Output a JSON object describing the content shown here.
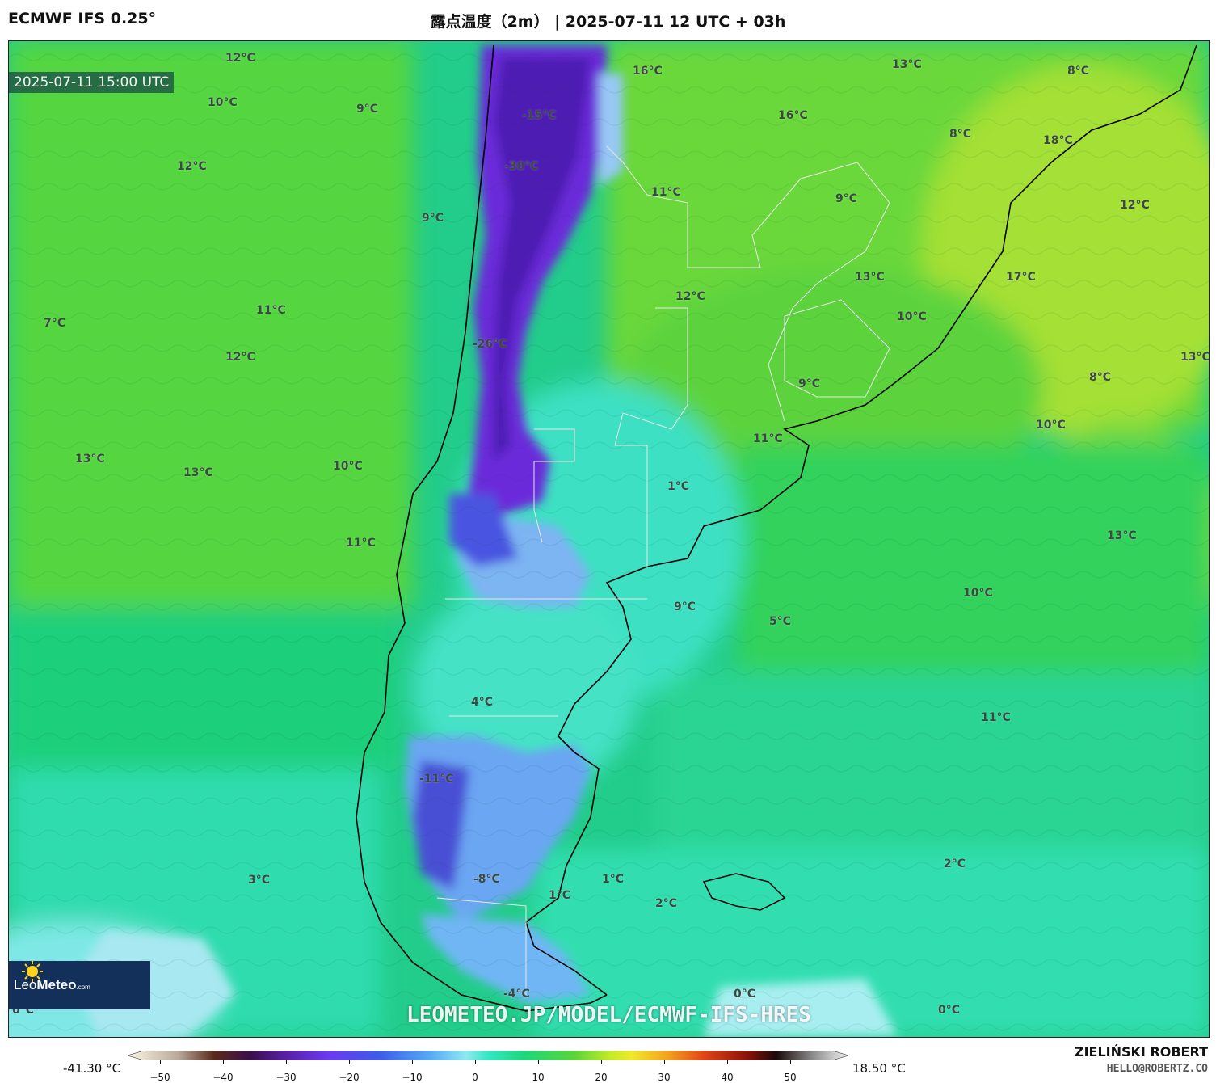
{
  "header": {
    "model": "ECMWF IFS 0.25°",
    "title": "露点温度（2m） | 2025-07-11 12 UTC + 03h"
  },
  "map": {
    "valid_time": "2025-07-11 15:00 UTC",
    "watermark": "LEOMETEO.JP/MODEL/ECMWF-IFS-HRES",
    "logo": {
      "name": "Leo",
      "name_bold": "Meteo",
      "suffix": ".com"
    },
    "labels": [
      {
        "text": "12°C"
      },
      {
        "text": "10°C"
      },
      {
        "text": "9°C"
      },
      {
        "text": "12°C"
      },
      {
        "text": "9°C"
      },
      {
        "text": "7°C"
      },
      {
        "text": "11°C"
      },
      {
        "text": "12°C"
      },
      {
        "text": "13°C"
      },
      {
        "text": "13°C"
      },
      {
        "text": "10°C"
      },
      {
        "text": "11°C"
      },
      {
        "text": "3°C"
      },
      {
        "text": "0°C"
      },
      {
        "text": "-15°C"
      },
      {
        "text": "-30°C"
      },
      {
        "text": "-26°C"
      },
      {
        "text": "-11°C"
      },
      {
        "text": "-8°C"
      },
      {
        "text": "-4°C"
      },
      {
        "text": "4°C"
      },
      {
        "text": "1°C"
      },
      {
        "text": "1°C"
      },
      {
        "text": "2°C"
      },
      {
        "text": "0°C"
      },
      {
        "text": "16°C"
      },
      {
        "text": "16°C"
      },
      {
        "text": "13°C"
      },
      {
        "text": "8°C"
      },
      {
        "text": "8°C"
      },
      {
        "text": "18°C"
      },
      {
        "text": "11°C"
      },
      {
        "text": "9°C"
      },
      {
        "text": "12°C"
      },
      {
        "text": "12°C"
      },
      {
        "text": "13°C"
      },
      {
        "text": "17°C"
      },
      {
        "text": "10°C"
      },
      {
        "text": "9°C"
      },
      {
        "text": "13°C"
      },
      {
        "text": "8°C"
      },
      {
        "text": "11°C"
      },
      {
        "text": "10°C"
      },
      {
        "text": "1°C"
      },
      {
        "text": "13°C"
      },
      {
        "text": "10°C"
      },
      {
        "text": "9°C"
      },
      {
        "text": "5°C"
      },
      {
        "text": "11°C"
      },
      {
        "text": "2°C"
      },
      {
        "text": "0°C"
      }
    ]
  },
  "colorbar": {
    "min_label": "-41.30 °C",
    "max_label": "18.50 °C",
    "ticks": [
      "−50",
      "−40",
      "−30",
      "−20",
      "−10",
      "0",
      "10",
      "20",
      "30",
      "40",
      "50"
    ]
  },
  "credit": {
    "name": "ZIELIŃSKI ROBERT",
    "email": "HELLO@ROBERTZ.CO"
  }
}
